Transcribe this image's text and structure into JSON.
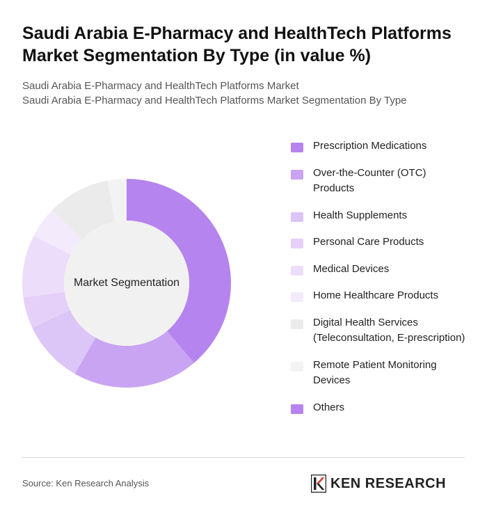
{
  "header": {
    "title": "Saudi Arabia E-Pharmacy and HealthTech Platforms Market Segmentation By Type (in value %)",
    "subtitle_line1": "Saudi Arabia E-Pharmacy and HealthTech Platforms Market",
    "subtitle_line2": "Saudi Arabia E-Pharmacy and HealthTech Platforms Market Segmentation By Type"
  },
  "chart_data": {
    "type": "pie",
    "center_label": "Market Segmentation",
    "categories": [
      "Prescription Medications",
      "Over-the-Counter (OTC) Products",
      "Health Supplements",
      "Personal Care Products",
      "Medical Devices",
      "Home Healthcare Products",
      "Digital Health Services (Teleconsultation, E-prescription)",
      "Remote Patient Monitoring Devices",
      "Others"
    ],
    "values": [
      40,
      20,
      10,
      5,
      10,
      5,
      10,
      3,
      0
    ],
    "colors": [
      "#b584ee",
      "#c8a4f2",
      "#dcc5f7",
      "#e4d0f8",
      "#ecdefa",
      "#f3ebfc",
      "#ebebeb",
      "#f3f3f3",
      "#b584ee"
    ],
    "legend_position": "right"
  },
  "footer": {
    "source": "Source: Ken Research Analysis",
    "brand": "KEN RESEARCH"
  }
}
